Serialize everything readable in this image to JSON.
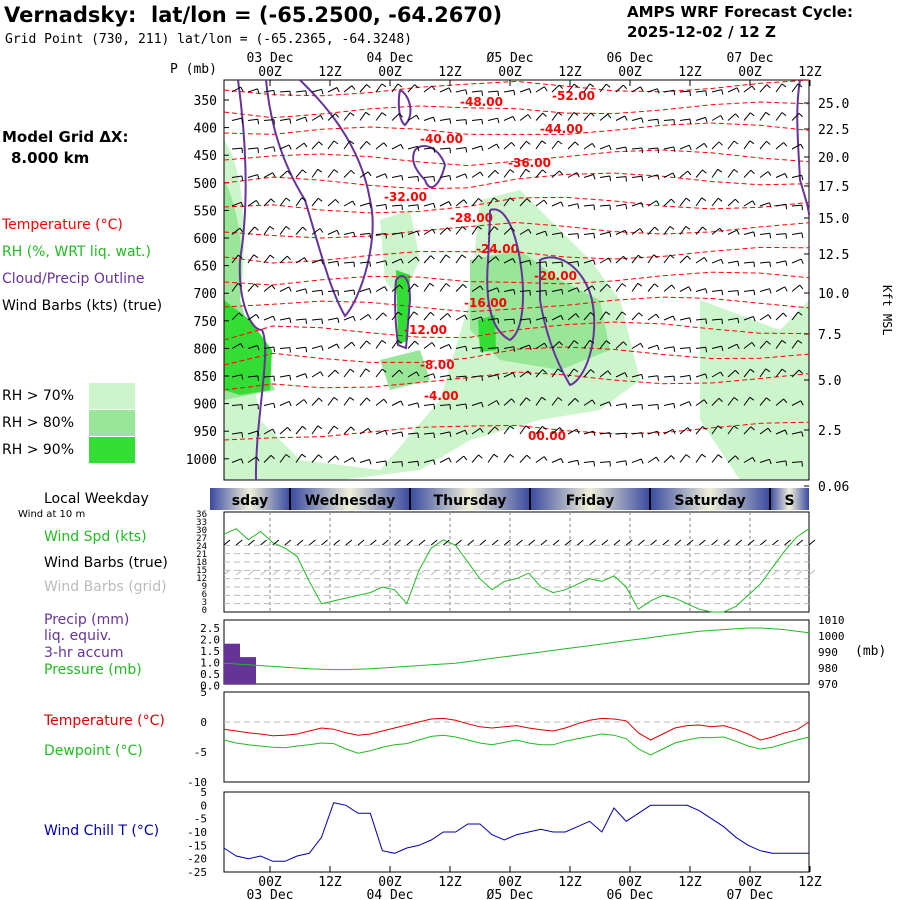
{
  "header": {
    "station": "Vernadsky:",
    "latlon": "lat/lon = (-65.2500, -64.2670)",
    "grid_point": "Grid Point (730, 211) lat/lon = (-65.2365, -64.3248)",
    "cycle_line1": "AMPS WRF Forecast Cycle:",
    "cycle_line2": "2025-12-02 / 12  Z"
  },
  "model_grid": {
    "label": "Model Grid ΔX:",
    "value": "8.000 km"
  },
  "legend": {
    "temperature": "Temperature (°C)",
    "rh": "RH (%, WRT liq. wat.)",
    "cloud": "Cloud/Precip Outline",
    "wind": "Wind Barbs (kts) (true)",
    "rh70": "RH > 70%",
    "rh80": "RH > 80%",
    "rh90": "RH > 90%"
  },
  "colors": {
    "temperature": "#ff0000",
    "rh_legend": "#22bb22",
    "cloud": "#663399",
    "rh70": "#ccf5cc",
    "rh80": "#99e699",
    "rh90": "#33dd33",
    "precip": "#663399",
    "dewpoint": "#22bb22",
    "windchill": "#0000aa",
    "weekday_band": "#3a4aa0"
  },
  "time_axis": {
    "p_label": "P (mb)",
    "ticks": [
      "00Z",
      "12Z",
      "00Z",
      "12Z",
      "00Z",
      "12Z",
      "00Z",
      "12Z",
      "00Z",
      "12Z"
    ],
    "ticks_top": [
      {
        "hour": "00Z",
        "date": "03 Dec"
      },
      {
        "hour": "12Z",
        "date": ""
      },
      {
        "hour": "00Z",
        "date": "04 Dec"
      },
      {
        "hour": "12Z",
        "date": ""
      },
      {
        "hour": "00Z",
        "date": "Ø5 Dec"
      },
      {
        "hour": "12Z",
        "date": ""
      },
      {
        "hour": "00Z",
        "date": "06 Dec"
      },
      {
        "hour": "12Z",
        "date": ""
      },
      {
        "hour": "00Z",
        "date": "07 Dec"
      },
      {
        "hour": "12Z",
        "date": ""
      }
    ],
    "ticks_bottom": [
      {
        "hour": "00Z",
        "date": "03 Dec"
      },
      {
        "hour": "12Z",
        "date": ""
      },
      {
        "hour": "00Z",
        "date": "04 Dec"
      },
      {
        "hour": "12Z",
        "date": ""
      },
      {
        "hour": "00Z",
        "date": "Ø5 Dec"
      },
      {
        "hour": "12Z",
        "date": ""
      },
      {
        "hour": "00Z",
        "date": "06 Dec"
      },
      {
        "hour": "12Z",
        "date": ""
      },
      {
        "hour": "00Z",
        "date": "07 Dec"
      },
      {
        "hour": "12Z",
        "date": ""
      }
    ]
  },
  "chart_data": [
    {
      "type": "heatmap",
      "name": "time-height cross section",
      "pressure_levels": [
        350,
        400,
        450,
        500,
        550,
        600,
        650,
        700,
        750,
        800,
        850,
        900,
        950,
        1000
      ],
      "height_labels": [
        "25.0",
        "22.5",
        "20.0",
        "17.5",
        "15.0",
        "12.5",
        "10.0",
        "7.5",
        "5.0",
        "2.5",
        "0.06"
      ],
      "height_axis_label": "Kft MSL",
      "temperature_contours": [
        {
          "value": "-52.00"
        },
        {
          "value": "-48.00"
        },
        {
          "value": "-44.00"
        },
        {
          "value": "-40.00"
        },
        {
          "value": "-36.00"
        },
        {
          "value": "-32.00"
        },
        {
          "value": "-28.00"
        },
        {
          "value": "-24.00"
        },
        {
          "value": "-20.00"
        },
        {
          "value": "-16.00"
        },
        {
          "value": "-12.00"
        },
        {
          "value": "-8.00"
        },
        {
          "value": "-4.00"
        },
        {
          "value": "00.00"
        }
      ]
    },
    {
      "type": "line",
      "name": "wind",
      "title_line1": "Local Weekday",
      "title_line2": "Wind at 10 m",
      "weekdays": [
        "Tuesday",
        "Wednesday",
        "Thursday",
        "Friday",
        "Saturday",
        "Sunday"
      ],
      "weekday_labels": [
        "sday",
        "Wednesday",
        "Thursday",
        "Friday",
        "Saturday",
        "S"
      ],
      "labels": {
        "speed": "Wind Spd (kts)",
        "barbs_true": "Wind Barbs (true)",
        "barbs_grid": "Wind Barbs (grid)"
      },
      "y_ticks": [
        "36",
        "33",
        "30",
        "27",
        "24",
        "21",
        "18",
        "15",
        "12",
        "9",
        "6",
        "3",
        "0"
      ],
      "ylim": [
        0,
        36
      ],
      "speed_kts": [
        28,
        30,
        26,
        29,
        25,
        23,
        20,
        11,
        3,
        4,
        5,
        6,
        7,
        9,
        8,
        3,
        15,
        23,
        26,
        24,
        18,
        12,
        8,
        11,
        12,
        14,
        9,
        7,
        8,
        10,
        12,
        11,
        13,
        9,
        1,
        4,
        6,
        5,
        3,
        1,
        0,
        0,
        2,
        6,
        10,
        16,
        22,
        27,
        30
      ]
    },
    {
      "type": "line",
      "name": "precip-pressure",
      "labels": {
        "precip": "Precip (mm)",
        "liq": "liq. equiv.",
        "accum": "3-hr accum",
        "pressure": "Pressure (mb)"
      },
      "y_ticks_left": [
        "2.5",
        "2.0",
        "1.5",
        "1.0",
        "0.5",
        "0.0"
      ],
      "y_ticks_right": [
        "1010",
        "1000",
        "990",
        "980",
        "970"
      ],
      "unit_right": "(mb)",
      "precip_mm": [
        1.8,
        1.2,
        0,
        0,
        0,
        0,
        0,
        0,
        0,
        0,
        0,
        0,
        0,
        0,
        0,
        0,
        0,
        0,
        0,
        0,
        0,
        0,
        0,
        0,
        0,
        0,
        0,
        0,
        0,
        0,
        0,
        0,
        0,
        0,
        0,
        0,
        0,
        0,
        0,
        0,
        0,
        0,
        0,
        0,
        0,
        0,
        0,
        0,
        0
      ],
      "pressure_mb": [
        983,
        982.5,
        982,
        981.5,
        981,
        980.5,
        980,
        979.5,
        979.2,
        979,
        979,
        979.2,
        979.5,
        980,
        980.5,
        981,
        981.5,
        982,
        982.5,
        983,
        984,
        985,
        986,
        987,
        988,
        989,
        990,
        991,
        992,
        993,
        994,
        995,
        996,
        997,
        998,
        999,
        1000,
        1001,
        1002,
        1003,
        1003.5,
        1004,
        1004.5,
        1005,
        1005,
        1004.5,
        1004,
        1003,
        1002
      ]
    },
    {
      "type": "line",
      "name": "temperature-dewpoint",
      "labels": {
        "temperature": "Temperature (°C)",
        "dewpoint": "Dewpoint (°C)"
      },
      "y_ticks": [
        "5",
        "0",
        "-5",
        "-10"
      ],
      "ylim": [
        -10,
        5
      ],
      "temperature_c": [
        -1.2,
        -1.5,
        -1.8,
        -2.0,
        -2.3,
        -2.2,
        -2.0,
        -1.5,
        -1.0,
        -1.2,
        -1.8,
        -2.2,
        -2.0,
        -1.5,
        -1.0,
        -0.5,
        0,
        0.5,
        0.6,
        0.3,
        -0.3,
        -0.8,
        -1.0,
        -0.8,
        -0.6,
        -1.0,
        -1.3,
        -1.5,
        -1.0,
        -0.3,
        0.3,
        0.6,
        0.5,
        0.2,
        -1.8,
        -3.0,
        -2.0,
        -1.0,
        -0.6,
        -0.5,
        -0.8,
        -0.6,
        -1.2,
        -2.0,
        -3.0,
        -2.5,
        -1.8,
        -1.3,
        0
      ]
    },
    {
      "type": "line",
      "name": "windchill",
      "labels": {
        "windchill": "Wind Chill T (°C)"
      },
      "y_ticks": [
        "5",
        "0",
        "-5",
        "-10",
        "-15",
        "-20",
        "-25"
      ],
      "ylim": [
        -25,
        5
      ],
      "windchill_c": [
        -16,
        -19,
        -20,
        -19,
        -21,
        -21,
        -19,
        -18,
        -12,
        1,
        0,
        -3,
        -3,
        -17,
        -18,
        -16,
        -15,
        -13,
        -10,
        -10,
        -7,
        -7,
        -11,
        -13,
        -11,
        -10,
        -9,
        -10,
        -10,
        -8,
        -6,
        -10,
        -1,
        -6,
        -3,
        0,
        0,
        0,
        0,
        -2,
        -5,
        -8,
        -12,
        -15,
        -17,
        -18,
        -18,
        -18,
        -18
      ]
    },
    {
      "type": "line",
      "name": "dewpoint-series",
      "dewpoint_c": [
        -3.0,
        -3.5,
        -3.8,
        -4.0,
        -4.2,
        -4.3,
        -4.0,
        -3.8,
        -3.5,
        -3.6,
        -4.5,
        -5.2,
        -4.8,
        -4.2,
        -3.8,
        -3.6,
        -3.0,
        -2.4,
        -2.2,
        -2.5,
        -3.0,
        -3.5,
        -3.8,
        -3.4,
        -3.0,
        -3.5,
        -3.8,
        -3.8,
        -3.2,
        -2.8,
        -2.4,
        -2.0,
        -2.2,
        -2.8,
        -4.5,
        -5.5,
        -4.5,
        -3.5,
        -3.0,
        -2.6,
        -2.6,
        -2.5,
        -3.2,
        -4.0,
        -4.5,
        -4.2,
        -3.6,
        -3.0,
        -2.5
      ]
    }
  ]
}
